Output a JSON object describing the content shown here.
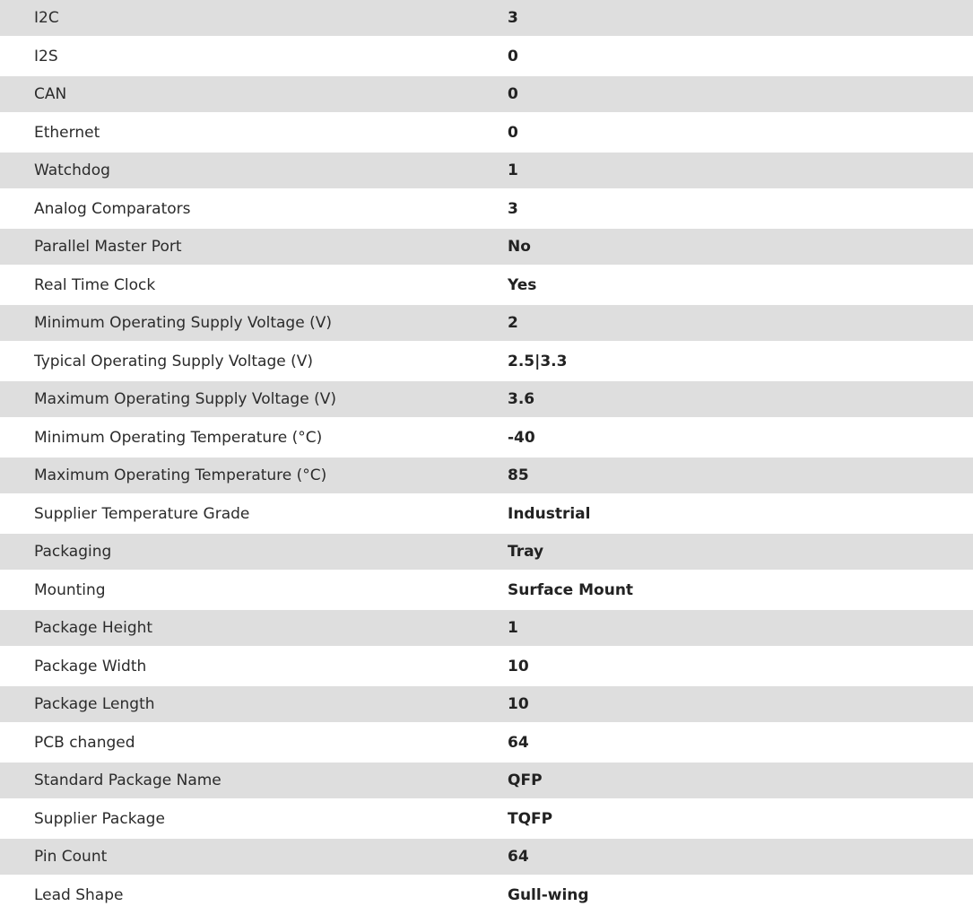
{
  "rows": [
    [
      "I2C",
      "3"
    ],
    [
      "I2S",
      "0"
    ],
    [
      "CAN",
      "0"
    ],
    [
      "Ethernet",
      "0"
    ],
    [
      "Watchdog",
      "1"
    ],
    [
      "Analog Comparators",
      "3"
    ],
    [
      "Parallel Master Port",
      "No"
    ],
    [
      "Real Time Clock",
      "Yes"
    ],
    [
      "Minimum Operating Supply Voltage (V)",
      "2"
    ],
    [
      "Typical Operating Supply Voltage (V)",
      "2.5|3.3"
    ],
    [
      "Maximum Operating Supply Voltage (V)",
      "3.6"
    ],
    [
      "Minimum Operating Temperature (°C)",
      "-40"
    ],
    [
      "Maximum Operating Temperature (°C)",
      "85"
    ],
    [
      "Supplier Temperature Grade",
      "Industrial"
    ],
    [
      "Packaging",
      "Tray"
    ],
    [
      "Mounting",
      "Surface Mount"
    ],
    [
      "Package Height",
      "1"
    ],
    [
      "Package Width",
      "10"
    ],
    [
      "Package Length",
      "10"
    ],
    [
      "PCB changed",
      "64"
    ],
    [
      "Standard Package Name",
      "QFP"
    ],
    [
      "Supplier Package",
      "TQFP"
    ],
    [
      "Pin Count",
      "64"
    ],
    [
      "Lead Shape",
      "Gull-wing"
    ]
  ]
}
